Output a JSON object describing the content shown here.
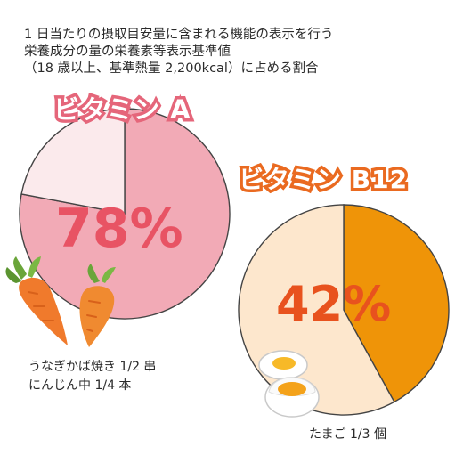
{
  "header": {
    "line1": "1 日当たりの摂取目安量に含まれる機能の表示を行う",
    "line2": "栄養成分の量の栄養素等表示基準値",
    "line3": "（18 歳以上、基準熱量 2,200kcal）に占める割合"
  },
  "chart_data": [
    {
      "type": "pie",
      "title": "ビタミン A",
      "label": "78%",
      "values": [
        78,
        22
      ],
      "colors": [
        "#f2aab6",
        "#fbeaec"
      ],
      "foods": [
        "うなぎかば焼き 1/2 串",
        "にんじん中 1/4 本"
      ]
    },
    {
      "type": "pie",
      "title": "ビタミン B12",
      "label": "42%",
      "values": [
        42,
        58
      ],
      "colors": [
        "#ef9408",
        "#fde7cd"
      ],
      "foods": [
        "たまご 1/3 個"
      ]
    }
  ],
  "colors": {
    "vitamin_a_accent": "#e5667a",
    "vitamin_b12_accent": "#ea6a20",
    "pie_outline": "#444444"
  },
  "icons": {
    "vitamin_a_illustration": "carrot-icon",
    "vitamin_b12_illustration": "boiled-egg-icon"
  }
}
